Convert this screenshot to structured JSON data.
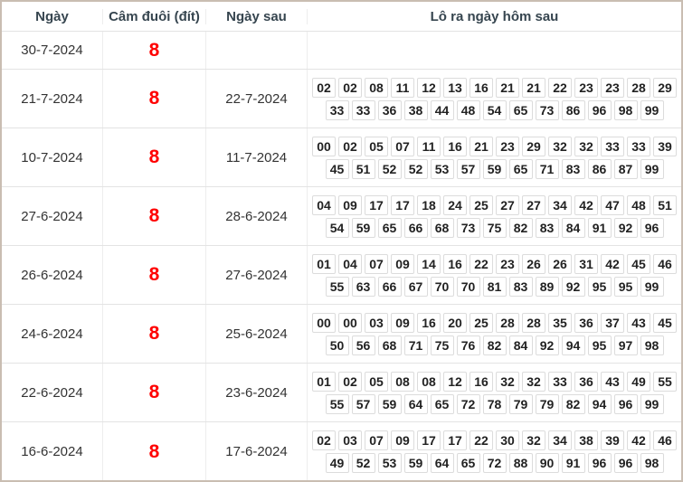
{
  "header": {
    "columns": [
      "Ngày",
      "Câm đuôi (đít)",
      "Ngày sau",
      "Lô ra ngày hôm sau"
    ]
  },
  "colors": {
    "outer_border": "#c9bdb2",
    "row_border": "#e3e3e3",
    "chip_border": "#dcdcdc",
    "tail_digit_red": "#ff0000",
    "header_text": "#36454f",
    "body_text": "#333333"
  },
  "rows": [
    {
      "date": "30-7-2024",
      "tail": "8",
      "next_date": "",
      "line1": [],
      "line2": []
    },
    {
      "date": "21-7-2024",
      "tail": "8",
      "next_date": "22-7-2024",
      "line1": [
        "02",
        "02",
        "08",
        "11",
        "12",
        "13",
        "16",
        "21",
        "21",
        "22",
        "23",
        "23",
        "28",
        "29"
      ],
      "line2": [
        "33",
        "33",
        "36",
        "38",
        "44",
        "48",
        "54",
        "65",
        "73",
        "86",
        "96",
        "98",
        "99"
      ]
    },
    {
      "date": "10-7-2024",
      "tail": "8",
      "next_date": "11-7-2024",
      "line1": [
        "00",
        "02",
        "05",
        "07",
        "11",
        "16",
        "21",
        "23",
        "29",
        "32",
        "32",
        "33",
        "33",
        "39"
      ],
      "line2": [
        "45",
        "51",
        "52",
        "52",
        "53",
        "57",
        "59",
        "65",
        "71",
        "83",
        "86",
        "87",
        "99"
      ]
    },
    {
      "date": "27-6-2024",
      "tail": "8",
      "next_date": "28-6-2024",
      "line1": [
        "04",
        "09",
        "17",
        "17",
        "18",
        "24",
        "25",
        "27",
        "27",
        "34",
        "42",
        "47",
        "48",
        "51"
      ],
      "line2": [
        "54",
        "59",
        "65",
        "66",
        "68",
        "73",
        "75",
        "82",
        "83",
        "84",
        "91",
        "92",
        "96"
      ]
    },
    {
      "date": "26-6-2024",
      "tail": "8",
      "next_date": "27-6-2024",
      "line1": [
        "01",
        "04",
        "07",
        "09",
        "14",
        "16",
        "22",
        "23",
        "26",
        "26",
        "31",
        "42",
        "45",
        "46"
      ],
      "line2": [
        "55",
        "63",
        "66",
        "67",
        "70",
        "70",
        "81",
        "83",
        "89",
        "92",
        "95",
        "95",
        "99"
      ]
    },
    {
      "date": "24-6-2024",
      "tail": "8",
      "next_date": "25-6-2024",
      "line1": [
        "00",
        "00",
        "03",
        "09",
        "16",
        "20",
        "25",
        "28",
        "28",
        "35",
        "36",
        "37",
        "43",
        "45"
      ],
      "line2": [
        "50",
        "56",
        "68",
        "71",
        "75",
        "76",
        "82",
        "84",
        "92",
        "94",
        "95",
        "97",
        "98"
      ]
    },
    {
      "date": "22-6-2024",
      "tail": "8",
      "next_date": "23-6-2024",
      "line1": [
        "01",
        "02",
        "05",
        "08",
        "08",
        "12",
        "16",
        "32",
        "32",
        "33",
        "36",
        "43",
        "49",
        "55"
      ],
      "line2": [
        "55",
        "57",
        "59",
        "64",
        "65",
        "72",
        "78",
        "79",
        "79",
        "82",
        "94",
        "96",
        "99"
      ]
    },
    {
      "date": "16-6-2024",
      "tail": "8",
      "next_date": "17-6-2024",
      "line1": [
        "02",
        "03",
        "07",
        "09",
        "17",
        "17",
        "22",
        "30",
        "32",
        "34",
        "38",
        "39",
        "42",
        "46"
      ],
      "line2": [
        "49",
        "52",
        "53",
        "59",
        "64",
        "65",
        "72",
        "88",
        "90",
        "91",
        "96",
        "96",
        "98"
      ]
    }
  ]
}
